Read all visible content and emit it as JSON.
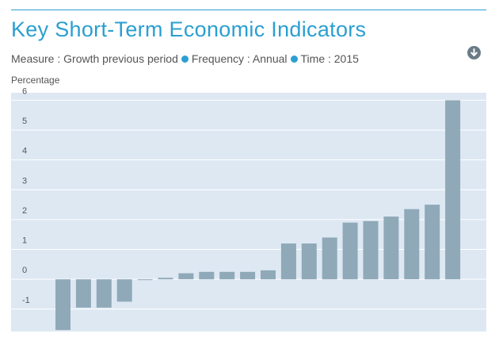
{
  "header": {
    "title": "Key Short-Term Economic Indicators",
    "measure": "Measure : Growth previous period",
    "frequency": "Frequency : Annual",
    "time": "Time : 2015",
    "download_icon": "download-arrow-icon"
  },
  "colors": {
    "accent": "#2b9fd1",
    "bar": "#8fa9b8",
    "plot_background": "#dde8f3",
    "gridline": "#ffffff"
  },
  "chart_data": {
    "type": "bar",
    "ylabel": "Percentage",
    "xlabel": "",
    "ylim": [
      -1.75,
      6.25
    ],
    "yticks": [
      -1,
      0,
      1,
      2,
      3,
      4,
      5,
      6
    ],
    "grid": true,
    "values": [
      -1.7,
      -0.95,
      -0.95,
      -0.75,
      0.0,
      0.05,
      0.2,
      0.25,
      0.25,
      0.25,
      0.3,
      1.2,
      1.2,
      1.4,
      1.9,
      1.95,
      2.1,
      2.35,
      2.5,
      6.0
    ]
  }
}
